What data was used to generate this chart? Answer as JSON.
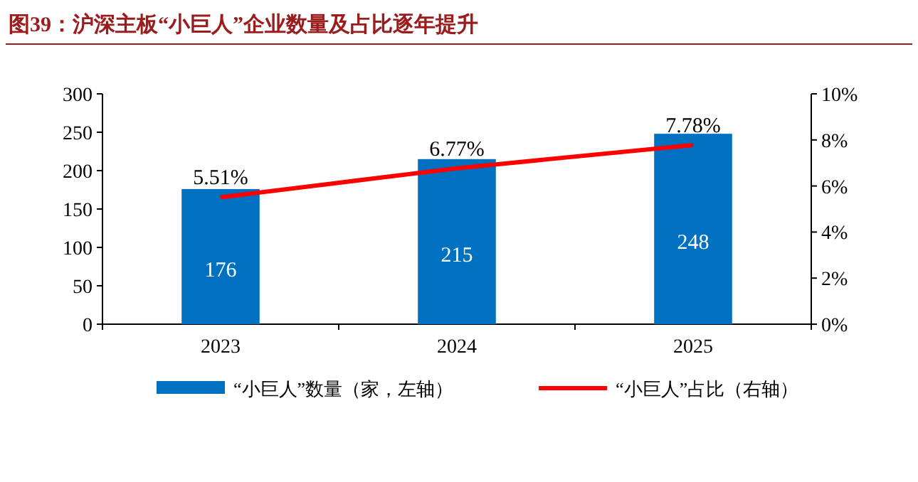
{
  "chart_data": {
    "type": "bar",
    "title": "图39：沪深主板“小巨人”企业数量及占比逐年提升",
    "categories": [
      "2023",
      "2024",
      "2025"
    ],
    "series": [
      {
        "name": "“小巨人”数量（家，左轴）",
        "color": "#0070c0",
        "values": [
          176,
          215,
          248
        ],
        "value_labels": [
          "176",
          "215",
          "248"
        ]
      },
      {
        "name": "“小巨人”占比（右轴）",
        "type": "line",
        "axis": "y2",
        "color": "#ff0000",
        "values": [
          5.51,
          6.77,
          7.78
        ],
        "value_labels": [
          "5.51%",
          "6.77%",
          "7.78%"
        ],
        "marker": "none"
      }
    ],
    "ylim": [
      0,
      300
    ],
    "yticks": [
      0,
      50,
      100,
      150,
      200,
      250,
      300
    ],
    "y2lim": [
      0,
      10
    ],
    "y2ticks": [
      {
        "value": 0,
        "label": "0%"
      },
      {
        "value": 2,
        "label": "2%"
      },
      {
        "value": 4,
        "label": "4%"
      },
      {
        "value": 6,
        "label": "6%"
      },
      {
        "value": 8,
        "label": "8%"
      },
      {
        "value": 10,
        "label": "10%"
      }
    ],
    "grid": false,
    "legend": "bottom"
  }
}
